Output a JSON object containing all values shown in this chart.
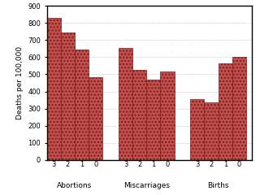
{
  "groups": [
    "Abortions",
    "Miscarriages",
    "Births"
  ],
  "labels": [
    "3",
    "2",
    "1",
    "0"
  ],
  "values": [
    [
      830,
      745,
      645,
      485
    ],
    [
      655,
      525,
      470,
      515
    ],
    [
      355,
      335,
      565,
      600
    ]
  ],
  "bar_color": "#c0504d",
  "bar_edge_color": "#7b1a1a",
  "bar_hatch": "....",
  "ylabel": "Deaths per 100,000",
  "ylim": [
    0,
    900
  ],
  "yticks": [
    0,
    100,
    200,
    300,
    400,
    500,
    600,
    700,
    800,
    900
  ],
  "background_color": "#ffffff",
  "grid_color": "#aaaaaa"
}
